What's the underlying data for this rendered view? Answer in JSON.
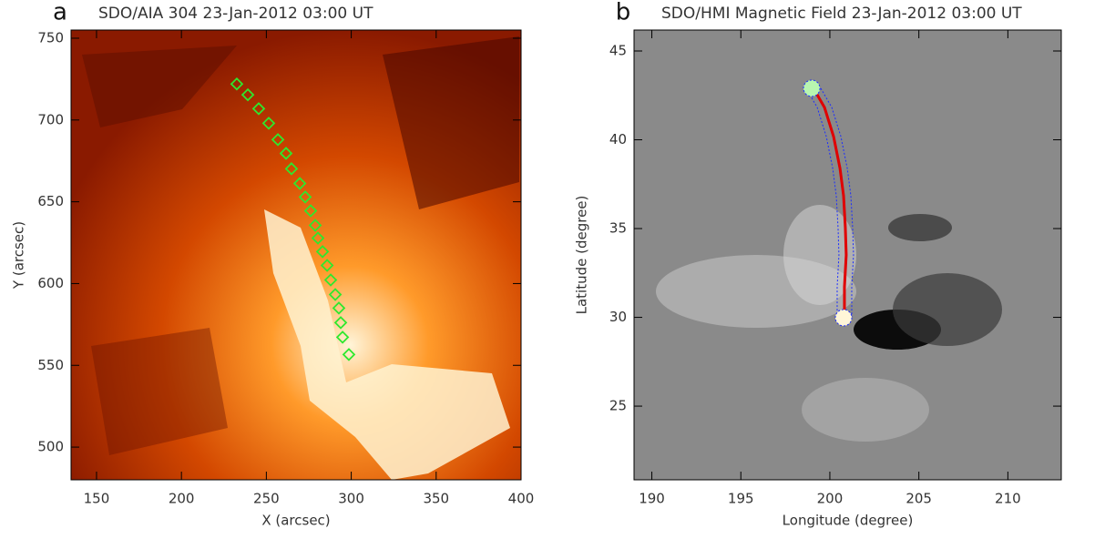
{
  "chart_data": [
    {
      "type": "scatter",
      "label": "a",
      "title": "SDO/AIA 304 23-Jan-2012 03:00 UT",
      "x_label": "X (arcsec)",
      "y_label": "Y (arcsec)",
      "xlim": [
        135,
        400
      ],
      "ylim": [
        480,
        755
      ],
      "xticks": [
        150,
        200,
        250,
        300,
        350,
        400
      ],
      "yticks": [
        500,
        550,
        600,
        650,
        700,
        750
      ],
      "color": "#2ee82e",
      "x": [
        232.6,
        239.1,
        245.5,
        251.4,
        256.8,
        261.6,
        264.8,
        269.7,
        272.9,
        276.1,
        278.8,
        280.4,
        283.1,
        285.8,
        287.9,
        290.6,
        292.7,
        293.8,
        294.9,
        298.6
      ],
      "values": [
        722.0,
        715.4,
        706.9,
        698.0,
        688.0,
        679.6,
        670.2,
        661.2,
        652.9,
        644.5,
        635.6,
        627.8,
        619.5,
        611.1,
        602.2,
        593.3,
        585.0,
        576.1,
        567.2,
        556.6
      ]
    },
    {
      "type": "line",
      "label": "b",
      "title": "SDO/HMI Magnetic Field 23-Jan-2012 03:00 UT",
      "x_label": "Longitude (degree)",
      "y_label": "Latitude (degree)",
      "xlim": [
        189,
        213
      ],
      "ylim": [
        20.85,
        46.18
      ],
      "xticks": [
        190,
        195,
        200,
        205,
        210
      ],
      "yticks": [
        25,
        30,
        35,
        40,
        45
      ],
      "color": "#e00000",
      "boundary_color": "#1a2cff",
      "x": [
        199.08,
        199.7,
        200.21,
        200.57,
        200.77,
        200.87,
        200.92,
        200.82,
        200.82
      ],
      "values": [
        42.9,
        41.82,
        40.18,
        38.39,
        36.85,
        35.05,
        33.51,
        31.72,
        30.03
      ],
      "footpoints": {
        "x": [
          198.98,
          200.77
        ],
        "values": [
          42.9,
          29.98
        ],
        "colors": [
          "#b8f5b0",
          "#fff6d8"
        ]
      }
    }
  ]
}
